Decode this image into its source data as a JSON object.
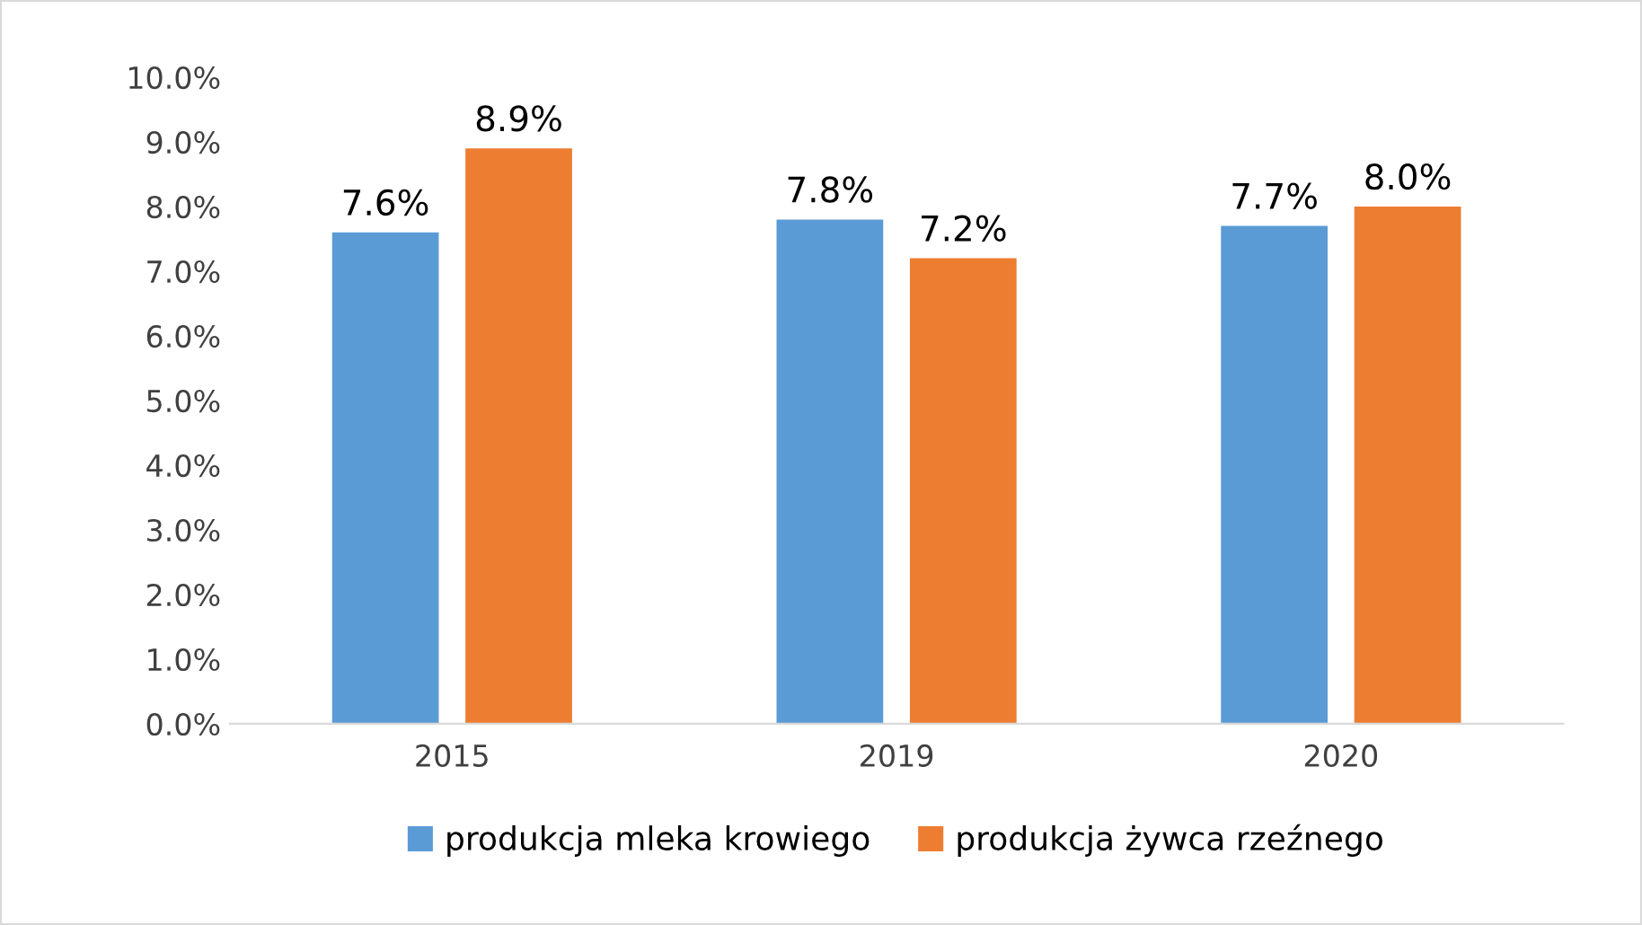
{
  "chart_data": {
    "type": "bar",
    "categories": [
      "2015",
      "2019",
      "2020"
    ],
    "series": [
      {
        "name": "produkcja mleka krowiego",
        "color": "#5b9bd5",
        "values": [
          7.6,
          7.8,
          7.7
        ],
        "value_labels": [
          "7.6%",
          "7.8%",
          "7.7%"
        ]
      },
      {
        "name": "produkcja żywca rzeźnego",
        "color": "#ed7d31",
        "values": [
          8.9,
          7.2,
          8.0
        ],
        "value_labels": [
          "8.9%",
          "7.2%",
          "8.0%"
        ]
      }
    ],
    "ylim": [
      0,
      10
    ],
    "yticks": [
      {
        "value": 0,
        "label": "0.0%"
      },
      {
        "value": 1,
        "label": "1.0%"
      },
      {
        "value": 2,
        "label": "2.0%"
      },
      {
        "value": 3,
        "label": "3.0%"
      },
      {
        "value": 4,
        "label": "4.0%"
      },
      {
        "value": 5,
        "label": "5.0%"
      },
      {
        "value": 6,
        "label": "6.0%"
      },
      {
        "value": 7,
        "label": "7.0%"
      },
      {
        "value": 8,
        "label": "8.0%"
      },
      {
        "value": 9,
        "label": "9.0%"
      },
      {
        "value": 10,
        "label": "10.0%"
      }
    ],
    "grid": false,
    "legend": "bottom"
  }
}
